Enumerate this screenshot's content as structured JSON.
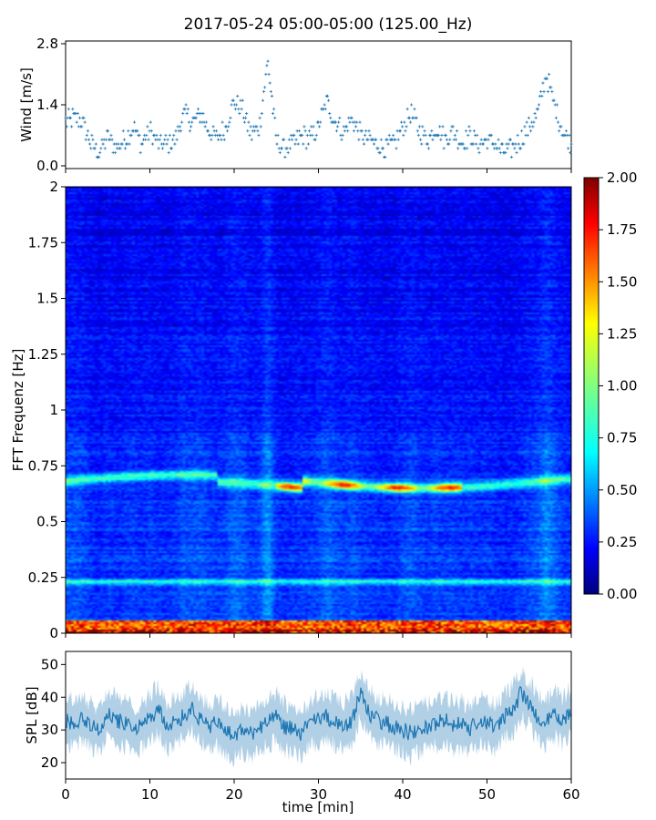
{
  "figure": {
    "title": "2017-05-24 05:00-05:00 (125.00_Hz)"
  },
  "chart_data": [
    {
      "type": "scatter",
      "panel": "wind",
      "ylabel": "Wind [m/s]",
      "xlim": [
        0,
        60
      ],
      "ylim": [
        0,
        2.8
      ],
      "yticks": [
        0.0,
        1.4,
        2.8
      ],
      "ytick_labels": [
        "0.0",
        "1.4",
        "2.8"
      ],
      "marker": "+",
      "color": "#1f77b4",
      "grid": false,
      "x": [
        0,
        1,
        2,
        3,
        4,
        5,
        6,
        7,
        8,
        9,
        10,
        11,
        12,
        13,
        14,
        15,
        16,
        17,
        18,
        19,
        20,
        21,
        22,
        23,
        24,
        25,
        26,
        27,
        28,
        29,
        30,
        31,
        32,
        33,
        34,
        35,
        36,
        37,
        38,
        39,
        40,
        41,
        42,
        43,
        44,
        45,
        46,
        47,
        48,
        49,
        50,
        51,
        52,
        53,
        54,
        55,
        56,
        57,
        58,
        59,
        60
      ],
      "y": [
        1.0,
        1.1,
        1.0,
        0.5,
        0.3,
        0.7,
        0.4,
        0.6,
        0.9,
        0.5,
        0.8,
        0.5,
        0.5,
        0.6,
        1.2,
        1.0,
        1.2,
        0.8,
        0.6,
        0.9,
        1.5,
        1.3,
        0.7,
        0.9,
        2.4,
        0.6,
        0.4,
        0.5,
        0.7,
        0.6,
        0.9,
        1.5,
        1.0,
        0.8,
        1.1,
        0.7,
        0.6,
        0.5,
        0.4,
        0.5,
        0.9,
        1.2,
        0.8,
        0.6,
        0.9,
        0.6,
        0.8,
        0.5,
        0.7,
        0.5,
        0.6,
        0.5,
        0.3,
        0.4,
        0.6,
        0.9,
        1.2,
        2.1,
        1.4,
        0.8,
        0.5
      ]
    },
    {
      "type": "heatmap",
      "panel": "spectrogram",
      "ylabel": "FFT Frequenz [Hz]",
      "xlim": [
        0,
        60
      ],
      "ylim": [
        0,
        2
      ],
      "yticks": [
        0,
        0.25,
        0.5,
        0.75,
        1,
        1.25,
        1.5,
        1.75,
        2
      ],
      "ytick_labels": [
        "0",
        "0.25",
        "0.5",
        "0.75",
        "1",
        "1.25",
        "1.5",
        "1.75",
        "2"
      ],
      "colormap": "jet",
      "colorbar": {
        "min": 0,
        "max": 2,
        "ticks": [
          0,
          0.25,
          0.5,
          0.75,
          1,
          1.25,
          1.5,
          1.75,
          2
        ],
        "tick_labels": [
          "0.00",
          "0.25",
          "0.50",
          "0.75",
          "1.00",
          "1.25",
          "1.50",
          "1.75",
          "2.00"
        ]
      },
      "features": [
        {
          "freq": 0.68,
          "x_start": 0,
          "x_end": 60,
          "peak_value": 1.8
        },
        {
          "freq": 0.23,
          "x_start": 0,
          "x_end": 60,
          "peak_value": 0.8
        },
        {
          "freq": 0.01,
          "x_start": 0,
          "x_end": 60,
          "peak_value": 2.0
        }
      ]
    },
    {
      "type": "line",
      "panel": "spl",
      "xlabel": "time [min]",
      "ylabel": "SPL [dB]",
      "xlim": [
        0,
        60
      ],
      "ylim": [
        15,
        54
      ],
      "xticks": [
        0,
        10,
        20,
        30,
        40,
        50,
        60
      ],
      "xtick_labels": [
        "0",
        "10",
        "20",
        "30",
        "40",
        "50",
        "60"
      ],
      "yticks": [
        20,
        30,
        40,
        50
      ],
      "ytick_labels": [
        "20",
        "30",
        "40",
        "50"
      ],
      "color": "#1f77b4",
      "grid": false,
      "x": [
        0,
        1,
        2,
        3,
        4,
        5,
        6,
        7,
        8,
        9,
        10,
        11,
        12,
        13,
        14,
        15,
        16,
        17,
        18,
        19,
        20,
        21,
        22,
        23,
        24,
        25,
        26,
        27,
        28,
        29,
        30,
        31,
        32,
        33,
        34,
        35,
        36,
        37,
        38,
        39,
        40,
        41,
        42,
        43,
        44,
        45,
        46,
        47,
        48,
        49,
        50,
        51,
        52,
        53,
        54,
        55,
        56,
        57,
        58,
        59,
        60
      ],
      "y": [
        33,
        32,
        34,
        31,
        30,
        35,
        33,
        32,
        30,
        31,
        34,
        36,
        31,
        33,
        34,
        37,
        33,
        31,
        32,
        30,
        28,
        30,
        29,
        31,
        32,
        34,
        31,
        30,
        29,
        32,
        33,
        34,
        32,
        31,
        33,
        41,
        35,
        33,
        32,
        31,
        30,
        29,
        30,
        31,
        32,
        33,
        31,
        32,
        30,
        33,
        32,
        31,
        34,
        36,
        41,
        38,
        34,
        32,
        35,
        33,
        36
      ]
    }
  ]
}
